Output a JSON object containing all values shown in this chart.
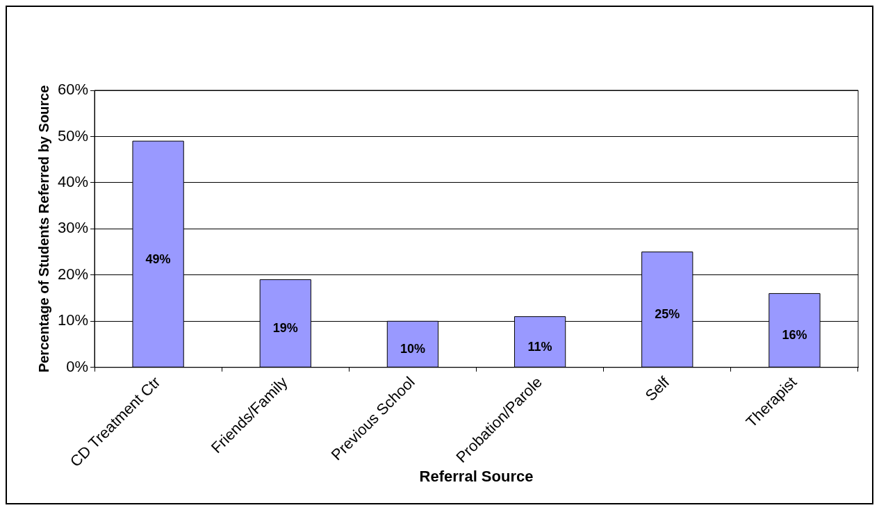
{
  "chart_data": {
    "type": "bar",
    "xlabel": "Referral Source",
    "ylabel": "Percentage of Students Referred by Source",
    "categories": [
      "CD Treatment Ctr",
      "Friends/Family",
      "Previous School",
      "Probation/Parole",
      "Self",
      "Therapist"
    ],
    "values": [
      49,
      19,
      10,
      11,
      25,
      16
    ],
    "value_labels": [
      "49%",
      "19%",
      "10%",
      "11%",
      "25%",
      "16%"
    ],
    "color": "#9999ff",
    "ylim": [
      0,
      60
    ],
    "yticks": [
      {
        "value": 0,
        "label": "0%"
      },
      {
        "value": 10,
        "label": "10%"
      },
      {
        "value": 20,
        "label": "20%"
      },
      {
        "value": 30,
        "label": "30%"
      },
      {
        "value": 40,
        "label": "40%"
      },
      {
        "value": 50,
        "label": "50%"
      },
      {
        "value": 60,
        "label": "60%"
      }
    ],
    "grid": "y",
    "legend": false
  }
}
